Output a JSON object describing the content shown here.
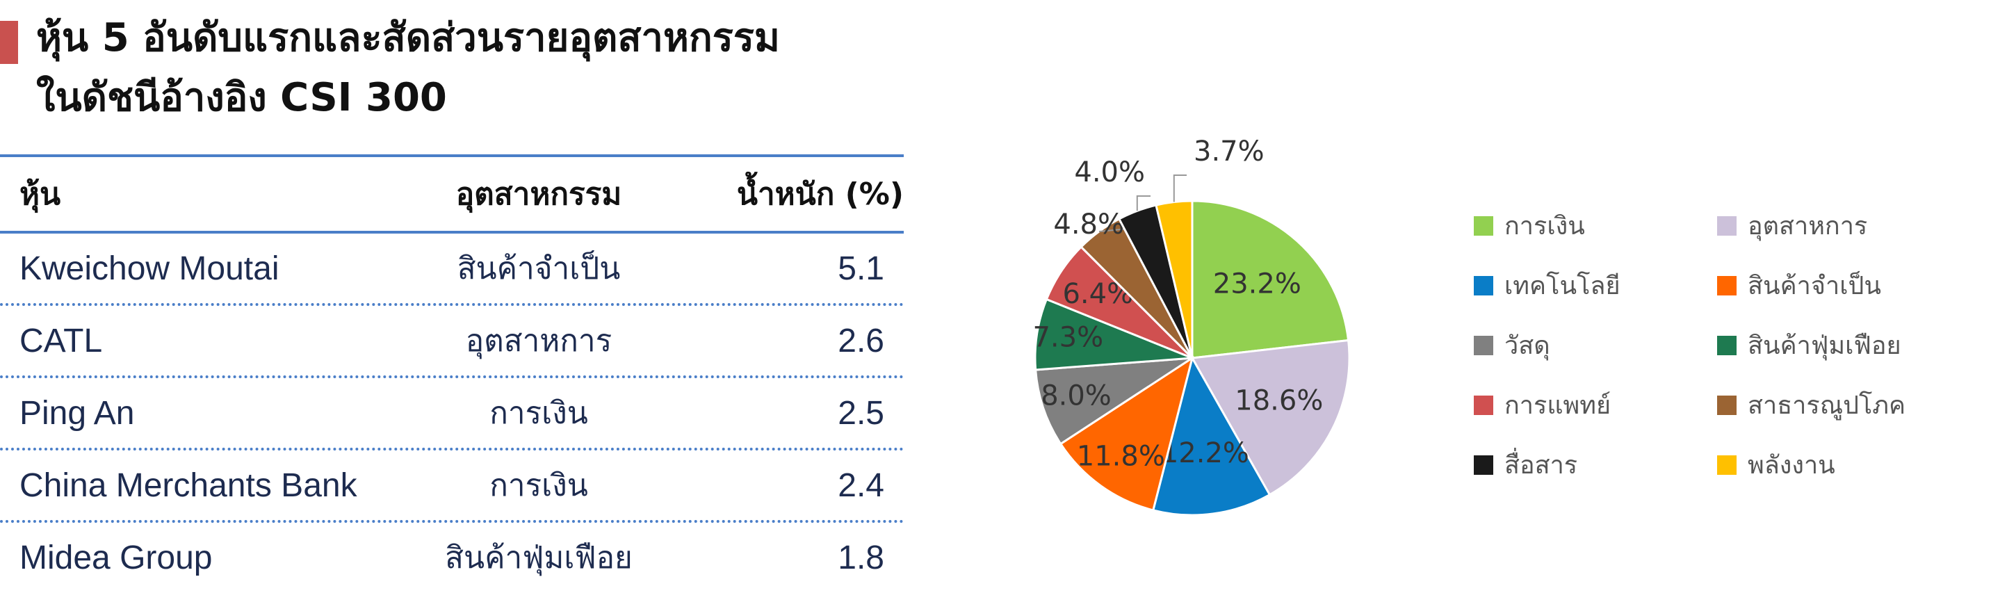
{
  "title": {
    "line1": "หุ้น 5 อันดับแรกและสัดส่วนรายอุตสาหกรรม",
    "line2": "ในดัชนีอ้างอิง CSI 300"
  },
  "table": {
    "headers": [
      "หุ้น",
      "อุตสาหกรรม",
      "น้ำหนัก (%)"
    ],
    "rows": [
      [
        "Kweichow Moutai",
        "สินค้าจำเป็น",
        "5.1"
      ],
      [
        "CATL",
        "อุตสาหการ",
        "2.6"
      ],
      [
        "Ping An",
        "การเงิน",
        "2.5"
      ],
      [
        "China Merchants Bank",
        "การเงิน",
        "2.4"
      ],
      [
        "Midea Group",
        "สินค้าฟุ่มเฟือย",
        "1.8"
      ]
    ]
  },
  "chart_data": {
    "type": "pie",
    "title": "",
    "start": "12 o'clock, clockwise",
    "legend_position": "right",
    "slices": [
      {
        "label": "การเงิน",
        "value": 23.2,
        "display": "23.2%",
        "color": "#92d050"
      },
      {
        "label": "อุตสาหการ",
        "value": 18.6,
        "display": "18.6%",
        "color": "#ccc1da"
      },
      {
        "label": "เทคโนโลยี",
        "value": 12.2,
        "display": "12.2%",
        "color": "#0a7dc7"
      },
      {
        "label": "สินค้าจำเป็น",
        "value": 11.8,
        "display": "11.8%",
        "color": "#ff6600"
      },
      {
        "label": "วัสดุ",
        "value": 8.0,
        "display": "8.0%",
        "color": "#808080"
      },
      {
        "label": "สินค้าฟุ่มเฟือย",
        "value": 7.3,
        "display": "7.3%",
        "color": "#1e7a50"
      },
      {
        "label": "การแพทย์",
        "value": 6.4,
        "display": "6.4%",
        "color": "#d05050"
      },
      {
        "label": "สาธารณูปโภค",
        "value": 4.8,
        "display": "4.8%",
        "color": "#9b6433"
      },
      {
        "label": "สื่อสาร",
        "value": 4.0,
        "display": "4.0%",
        "color": "#1a1a1a"
      },
      {
        "label": "พลังงาน",
        "value": 3.7,
        "display": "3.7%",
        "color": "#ffc000"
      }
    ]
  }
}
